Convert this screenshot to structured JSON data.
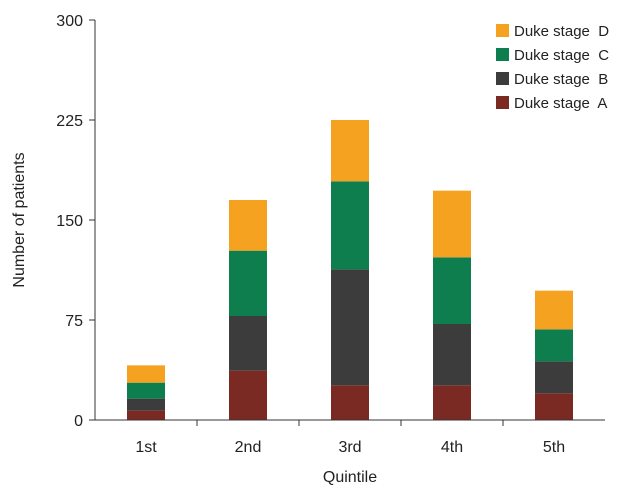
{
  "chart_data": {
    "type": "bar",
    "stacked": true,
    "title": "",
    "xlabel": "Quintile",
    "ylabel": "Number of patients",
    "categories": [
      "1st",
      "2nd",
      "3rd",
      "4th",
      "5th"
    ],
    "ylim": [
      0,
      300
    ],
    "yticks": [
      0,
      75,
      150,
      225,
      300
    ],
    "grid": false,
    "legend_position": "top-right",
    "series": [
      {
        "name": "Duke stage  A",
        "color": "#7a2a22",
        "values": [
          7,
          37,
          26,
          26,
          20
        ]
      },
      {
        "name": "Duke stage  B",
        "color": "#3c3c3c",
        "values": [
          9,
          41,
          87,
          46,
          24
        ]
      },
      {
        "name": "Duke stage  C",
        "color": "#0f7e4e",
        "values": [
          12,
          49,
          66,
          50,
          24
        ]
      },
      {
        "name": "Duke stage  D",
        "color": "#f5a221",
        "values": [
          13,
          38,
          46,
          50,
          29
        ]
      }
    ]
  }
}
